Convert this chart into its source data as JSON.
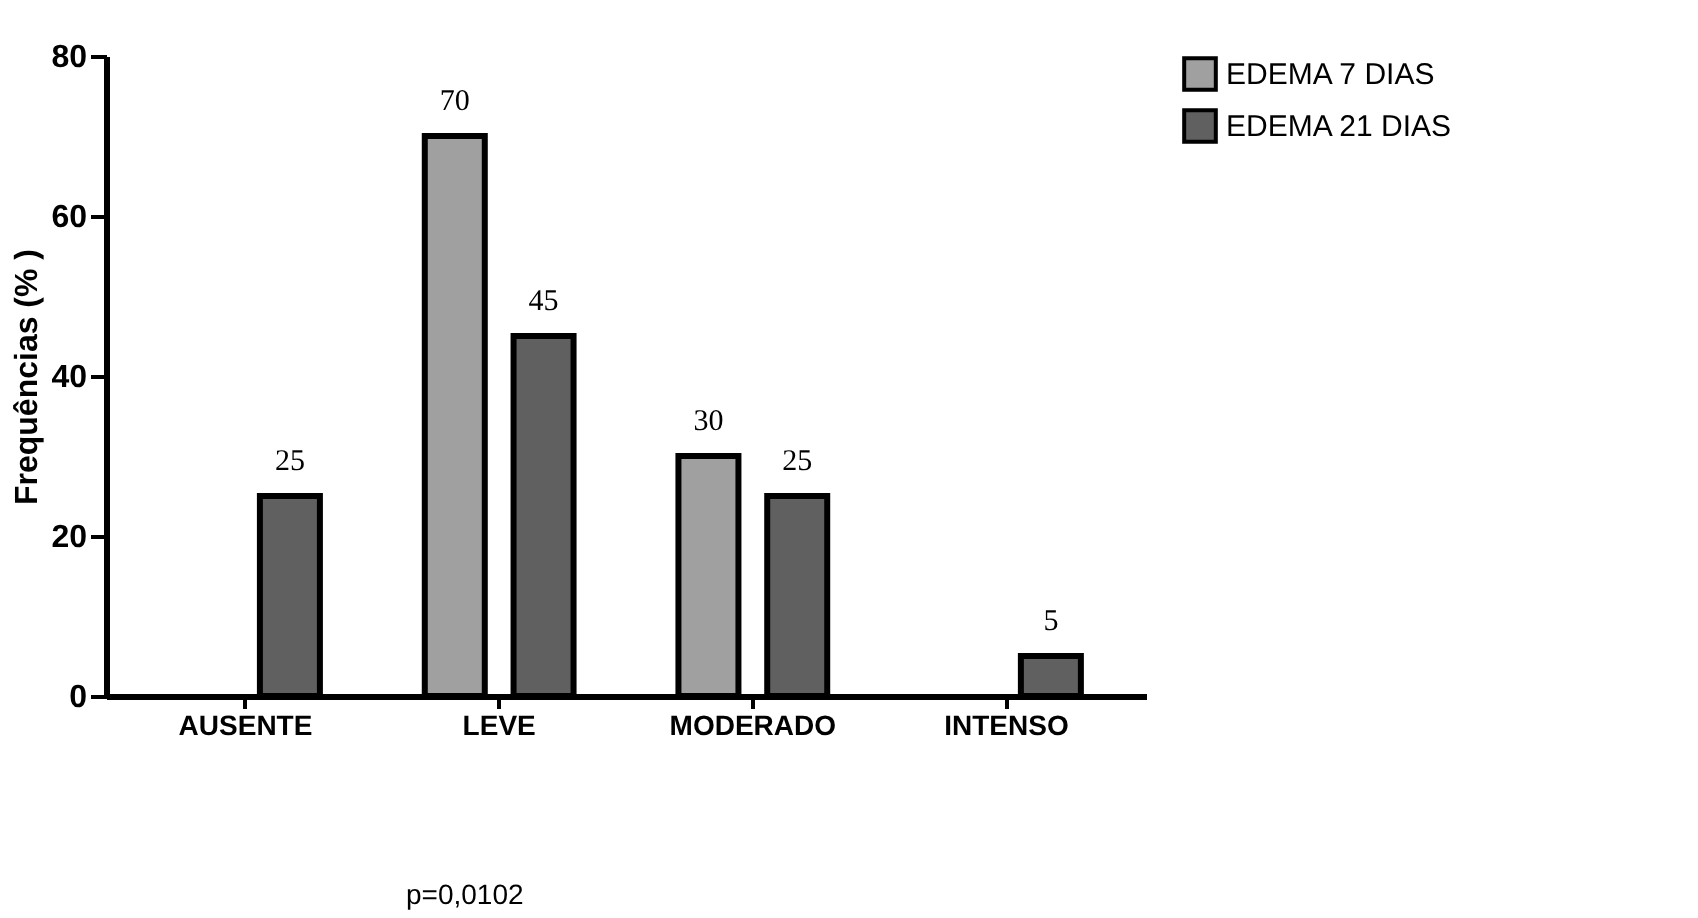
{
  "chart_data": {
    "type": "bar",
    "ylabel": "Frequências (% )",
    "categories": [
      "AUSENTE",
      "LEVE",
      "MODERADO",
      "INTENSO"
    ],
    "series": [
      {
        "name": "EDEMA 7 DIAS",
        "color": "#a0a0a0",
        "values": [
          null,
          70,
          30,
          null
        ],
        "value_labels": [
          null,
          "70",
          "30",
          null
        ]
      },
      {
        "name": "EDEMA 21 DIAS",
        "color": "#606060",
        "values": [
          25,
          45,
          25,
          5
        ],
        "value_labels": [
          "25",
          "45",
          "25",
          "5"
        ]
      }
    ],
    "ylim": [
      0,
      80
    ],
    "yticks": [
      0,
      20,
      40,
      60,
      80
    ],
    "grid": false,
    "legend": "top right",
    "annotations": [
      "p=0,0102"
    ]
  }
}
